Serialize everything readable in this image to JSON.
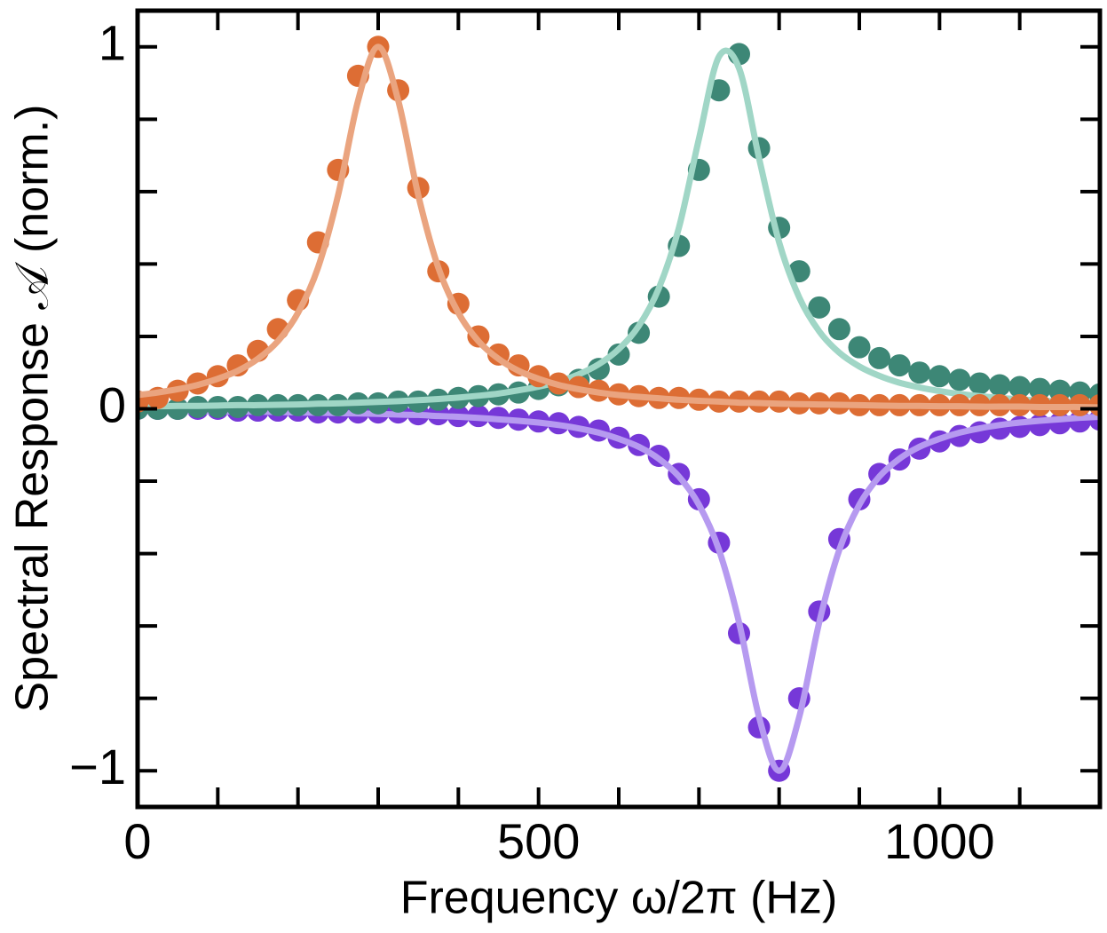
{
  "chart_data": {
    "type": "scatter",
    "x_label": "Frequency ω/2π (Hz)",
    "y_label": "Spectral Response 𝒜 (norm.)",
    "x": [
      0,
      25,
      50,
      75,
      100,
      125,
      150,
      175,
      200,
      225,
      250,
      275,
      300,
      325,
      350,
      375,
      400,
      425,
      450,
      475,
      500,
      525,
      550,
      575,
      600,
      625,
      650,
      675,
      700,
      725,
      750,
      775,
      800,
      825,
      850,
      875,
      900,
      925,
      950,
      975,
      1000,
      1025,
      1050,
      1075,
      1100,
      1125,
      1150,
      1175,
      1200
    ],
    "xlim": [
      0,
      1200
    ],
    "ylim": [
      -1.1,
      1.1
    ],
    "xticks": [
      0,
      500,
      1000
    ],
    "xminorticks": [
      100,
      200,
      300,
      400,
      600,
      700,
      800,
      900,
      1100
    ],
    "yticks": [
      {
        "value": -1,
        "label": "−1"
      },
      0,
      1
    ],
    "yminorticks": [
      -0.8,
      -0.6,
      -0.4,
      -0.2,
      0.2,
      0.4,
      0.6,
      0.8
    ],
    "series": [
      {
        "color": "#7638d8",
        "fit_color": "#b69af0",
        "values": [
          0,
          0,
          0,
          0,
          0,
          -0.005,
          -0.005,
          -0.005,
          -0.005,
          -0.01,
          -0.01,
          -0.01,
          -0.01,
          -0.01,
          -0.015,
          -0.015,
          -0.02,
          -0.02,
          -0.025,
          -0.03,
          -0.035,
          -0.04,
          -0.05,
          -0.06,
          -0.08,
          -0.1,
          -0.13,
          -0.18,
          -0.25,
          -0.37,
          -0.62,
          -0.88,
          -1.0,
          -0.8,
          -0.56,
          -0.36,
          -0.25,
          -0.18,
          -0.14,
          -0.11,
          -0.09,
          -0.075,
          -0.065,
          -0.055,
          -0.05,
          -0.045,
          -0.04,
          -0.035,
          -0.03
        ],
        "fit": [
          -0.006,
          -0.006,
          -0.006,
          -0.007,
          -0.007,
          -0.008,
          -0.008,
          -0.009,
          -0.01,
          -0.011,
          -0.012,
          -0.013,
          -0.014,
          -0.016,
          -0.017,
          -0.02,
          -0.022,
          -0.025,
          -0.029,
          -0.033,
          -0.038,
          -0.045,
          -0.054,
          -0.066,
          -0.083,
          -0.105,
          -0.138,
          -0.187,
          -0.265,
          -0.39,
          -0.59,
          -0.852,
          -1,
          -0.852,
          -0.59,
          -0.39,
          -0.265,
          -0.187,
          -0.138,
          -0.105,
          -0.083,
          -0.066,
          -0.054,
          -0.045,
          -0.038,
          -0.033,
          -0.029,
          -0.025,
          -0.022
        ]
      },
      {
        "color": "#3d8776",
        "fit_color": "#a0d6c6",
        "values": [
          0,
          0,
          0,
          0.005,
          0.005,
          0.005,
          0.01,
          0.01,
          0.01,
          0.01,
          0.01,
          0.015,
          0.015,
          0.02,
          0.02,
          0.025,
          0.03,
          0.035,
          0.04,
          0.045,
          0.055,
          0.065,
          0.08,
          0.11,
          0.15,
          0.21,
          0.31,
          0.45,
          0.66,
          0.88,
          0.98,
          0.72,
          0.5,
          0.38,
          0.28,
          0.22,
          0.17,
          0.14,
          0.12,
          0.1,
          0.09,
          0.08,
          0.07,
          0.065,
          0.06,
          0.055,
          0.05,
          0.045,
          0.04
        ],
        "fit": [
          0.007,
          0.007,
          0.008,
          0.008,
          0.009,
          0.01,
          0.01,
          0.011,
          0.012,
          0.014,
          0.015,
          0.017,
          0.019,
          0.021,
          0.024,
          0.027,
          0.031,
          0.036,
          0.042,
          0.051,
          0.061,
          0.075,
          0.095,
          0.123,
          0.165,
          0.229,
          0.333,
          0.5,
          0.746,
          0.973,
          0.941,
          0.692,
          0.46,
          0.308,
          0.214,
          0.155,
          0.117,
          0.091,
          0.072,
          0.059,
          0.049,
          0.041,
          0.035,
          0.03,
          0.026,
          0.023,
          0.02,
          0.018,
          0.016
        ]
      },
      {
        "color": "#dd6d34",
        "fit_color": "#eaa47f",
        "values": [
          0.02,
          0.03,
          0.05,
          0.07,
          0.09,
          0.12,
          0.16,
          0.22,
          0.3,
          0.46,
          0.66,
          0.92,
          1.0,
          0.88,
          0.61,
          0.38,
          0.29,
          0.2,
          0.15,
          0.12,
          0.09,
          0.07,
          0.06,
          0.05,
          0.04,
          0.035,
          0.03,
          0.03,
          0.025,
          0.02,
          0.02,
          0.02,
          0.02,
          0.015,
          0.015,
          0.015,
          0.01,
          0.01,
          0.01,
          0.01,
          0.01,
          0.01,
          0.01,
          0.01,
          0.01,
          0.01,
          0.01,
          0.01,
          0.01
        ],
        "fit": [
          0.038,
          0.045,
          0.054,
          0.066,
          0.083,
          0.105,
          0.138,
          0.187,
          0.265,
          0.39,
          0.59,
          0.852,
          1,
          0.852,
          0.59,
          0.39,
          0.265,
          0.187,
          0.138,
          0.105,
          0.083,
          0.066,
          0.054,
          0.045,
          0.038,
          0.033,
          0.029,
          0.025,
          0.022,
          0.02,
          0.017,
          0.016,
          0.014,
          0.013,
          0.012,
          0.011,
          0.01,
          0.009,
          0.008,
          0.008,
          0.007,
          0.007,
          0.006,
          0.006,
          0.006,
          0.005,
          0.005,
          0.005,
          0.004
        ]
      }
    ]
  }
}
